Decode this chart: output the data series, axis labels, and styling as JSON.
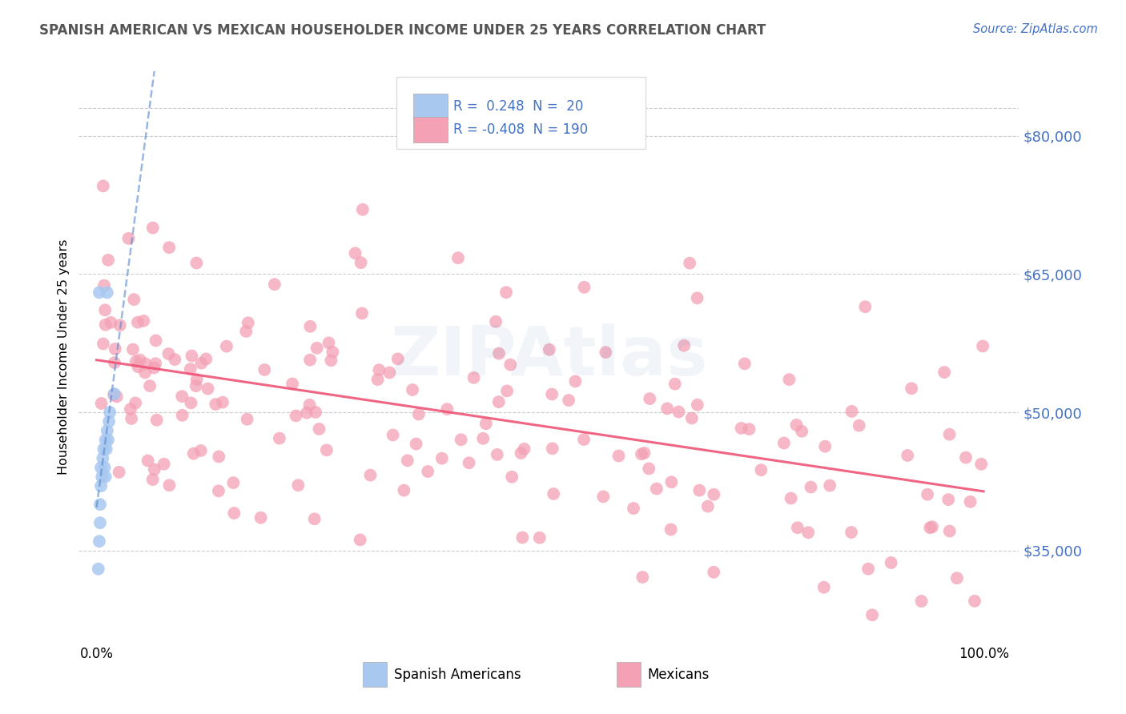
{
  "title": "SPANISH AMERICAN VS MEXICAN HOUSEHOLDER INCOME UNDER 25 YEARS CORRELATION CHART",
  "source": "Source: ZipAtlas.com",
  "ylabel": "Householder Income Under 25 years",
  "y_ticks": [
    35000,
    50000,
    65000,
    80000
  ],
  "y_tick_labels": [
    "$35,000",
    "$50,000",
    "$65,000",
    "$80,000"
  ],
  "color_spanish": "#A8C8F0",
  "color_mexican": "#F4A0B5",
  "line_color_spanish": "#5588CC",
  "line_color_mexican": "#EE5577",
  "title_color": "#555555",
  "source_color": "#4472C4",
  "tick_label_color": "#4472C4",
  "grid_color": "#CCCCCC",
  "r_spanish": 0.248,
  "n_spanish": 20,
  "r_mexican": -0.408,
  "n_mexican": 190,
  "legend_text_color": "#4472C4",
  "legend_r_color": "#333333"
}
